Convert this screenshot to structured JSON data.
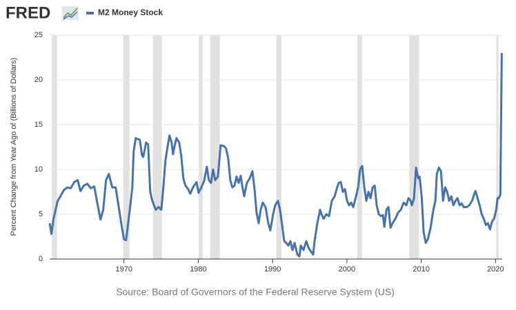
{
  "logo": "FRED",
  "chart_data": {
    "type": "line",
    "y_label": "Percent Change from Year Ago of (Billions of Dollars)",
    "source": "Source: Board of Governors of the Federal Reserve System (US)",
    "xlim": [
      1960,
      2020.9
    ],
    "ylim": [
      0,
      25
    ],
    "xticks": [
      1970,
      1980,
      1990,
      2000,
      2010,
      2020
    ],
    "yticks": [
      0,
      5,
      10,
      15,
      20,
      25
    ],
    "grid": true,
    "recession_color": "#e1e1e1",
    "recessions": [
      [
        1960.3,
        1961.0
      ],
      [
        1969.9,
        1970.74
      ],
      [
        1973.9,
        1975.1
      ],
      [
        1980.04,
        1980.6
      ],
      [
        1981.6,
        1982.9
      ],
      [
        1990.5,
        1991.2
      ],
      [
        2001.4,
        2002.06
      ],
      [
        2008.4,
        2009.7
      ],
      [
        2020.1,
        2020.4
      ]
    ],
    "x": [
      1960.0,
      1960.24,
      1960.52,
      1961.08,
      1961.45,
      1961.91,
      1962.38,
      1962.84,
      1963.31,
      1963.77,
      1964.14,
      1964.61,
      1965.07,
      1965.54,
      1966.0,
      1966.47,
      1966.84,
      1967.21,
      1967.58,
      1967.96,
      1968.42,
      1968.88,
      1969.26,
      1969.63,
      1970.0,
      1970.28,
      1970.74,
      1971.12,
      1971.3,
      1971.58,
      1972.14,
      1972.42,
      1972.6,
      1972.97,
      1973.25,
      1973.53,
      1973.81,
      1974.28,
      1974.65,
      1975.02,
      1975.3,
      1975.58,
      1975.86,
      1976.13,
      1976.41,
      1976.6,
      1976.78,
      1977.06,
      1977.43,
      1977.71,
      1977.99,
      1978.27,
      1978.64,
      1978.92,
      1979.29,
      1979.76,
      1980.04,
      1980.41,
      1980.78,
      1981.15,
      1981.43,
      1981.71,
      1981.99,
      1982.27,
      1982.64,
      1983.01,
      1983.48,
      1983.75,
      1984.03,
      1984.31,
      1984.59,
      1984.87,
      1985.15,
      1985.43,
      1985.71,
      1985.89,
      1986.17,
      1986.54,
      1986.91,
      1987.29,
      1987.57,
      1987.84,
      1988.12,
      1988.4,
      1988.68,
      1989.05,
      1989.42,
      1989.7,
      1990.07,
      1990.35,
      1990.72,
      1991.0,
      1991.28,
      1991.56,
      1991.84,
      1992.12,
      1992.4,
      1992.68,
      1992.96,
      1993.33,
      1993.61,
      1993.79,
      1994.16,
      1994.54,
      1994.81,
      1995.19,
      1995.46,
      1995.65,
      1996.02,
      1996.39,
      1996.58,
      1996.86,
      1997.23,
      1997.6,
      1997.97,
      1998.35,
      1998.62,
      1998.9,
      1999.18,
      1999.46,
      1999.74,
      2000.02,
      2000.3,
      2000.58,
      2000.86,
      2001.23,
      2001.51,
      2001.78,
      2002.06,
      2002.34,
      2002.62,
      2002.9,
      2003.18,
      2003.46,
      2003.74,
      2004.01,
      2004.29,
      2004.57,
      2004.85,
      2005.04,
      2005.32,
      2005.59,
      2005.87,
      2006.15,
      2006.52,
      2006.9,
      2007.27,
      2007.64,
      2008.01,
      2008.29,
      2008.57,
      2008.75,
      2009.03,
      2009.31,
      2009.59,
      2009.78,
      2010.06,
      2010.33,
      2010.61,
      2010.89,
      2011.26,
      2011.64,
      2011.91,
      2012.1,
      2012.38,
      2012.66,
      2012.94,
      2013.22,
      2013.49,
      2013.77,
      2014.05,
      2014.33,
      2014.61,
      2014.89,
      2015.17,
      2015.45,
      2015.72,
      2016.1,
      2016.47,
      2016.84,
      2017.12,
      2017.3,
      2017.58,
      2017.86,
      2018.14,
      2018.42,
      2018.7,
      2018.98,
      2019.26,
      2019.54,
      2019.81,
      2020.09,
      2020.28,
      2020.46,
      2020.65,
      2020.84
    ],
    "series": [
      {
        "name": "M2 Money Stock",
        "color": "#4572a7",
        "values": [
          4.0,
          2.8,
          4.5,
          6.5,
          7.0,
          7.7,
          8.0,
          7.9,
          8.6,
          8.8,
          7.6,
          8.2,
          8.4,
          7.9,
          8.1,
          6.0,
          4.4,
          5.5,
          8.8,
          9.5,
          8.0,
          8.0,
          6.0,
          4.0,
          2.2,
          2.1,
          5.2,
          8.0,
          12.0,
          13.5,
          13.3,
          11.6,
          11.4,
          13.0,
          12.8,
          7.5,
          6.5,
          5.5,
          5.8,
          5.5,
          8.0,
          11.0,
          12.5,
          13.8,
          13.0,
          11.7,
          12.5,
          13.5,
          13.0,
          11.5,
          9.0,
          8.2,
          7.8,
          7.3,
          8.0,
          8.6,
          7.4,
          8.0,
          8.7,
          10.3,
          8.8,
          8.5,
          10.0,
          8.8,
          9.2,
          12.7,
          12.6,
          12.3,
          11.2,
          8.8,
          8.0,
          8.2,
          9.2,
          8.5,
          9.3,
          8.3,
          7.0,
          8.5,
          9.0,
          9.8,
          7.8,
          5.2,
          4.0,
          5.5,
          6.3,
          5.8,
          4.0,
          3.2,
          5.0,
          6.0,
          6.5,
          5.5,
          3.8,
          2.0,
          1.8,
          1.5,
          2.0,
          1.0,
          1.8,
          0.5,
          0.3,
          1.5,
          1.0,
          2.0,
          1.3,
          0.8,
          0.5,
          2.0,
          4.0,
          5.5,
          5.0,
          4.5,
          5.0,
          4.8,
          6.5,
          7.0,
          7.8,
          8.5,
          8.6,
          7.5,
          7.8,
          6.5,
          6.0,
          6.3,
          5.8,
          7.0,
          8.0,
          10.0,
          10.4,
          8.0,
          6.5,
          7.5,
          6.8,
          8.0,
          8.2,
          6.0,
          5.0,
          4.8,
          4.9,
          3.6,
          5.5,
          5.8,
          3.5,
          4.0,
          4.5,
          5.2,
          5.5,
          6.3,
          6.0,
          6.8,
          6.5,
          6.0,
          6.8,
          10.2,
          9.0,
          9.2,
          7.0,
          3.0,
          1.8,
          2.2,
          3.5,
          5.5,
          6.5,
          9.5,
          10.2,
          9.8,
          6.5,
          8.0,
          7.5,
          6.5,
          7.0,
          6.0,
          6.5,
          6.8,
          6.0,
          6.2,
          5.8,
          5.8,
          6.0,
          6.5,
          7.2,
          7.6,
          6.8,
          6.0,
          5.0,
          4.5,
          3.8,
          4.0,
          3.3,
          4.2,
          4.5,
          5.5,
          6.8,
          6.8,
          7.2,
          23.0
        ]
      }
    ]
  }
}
